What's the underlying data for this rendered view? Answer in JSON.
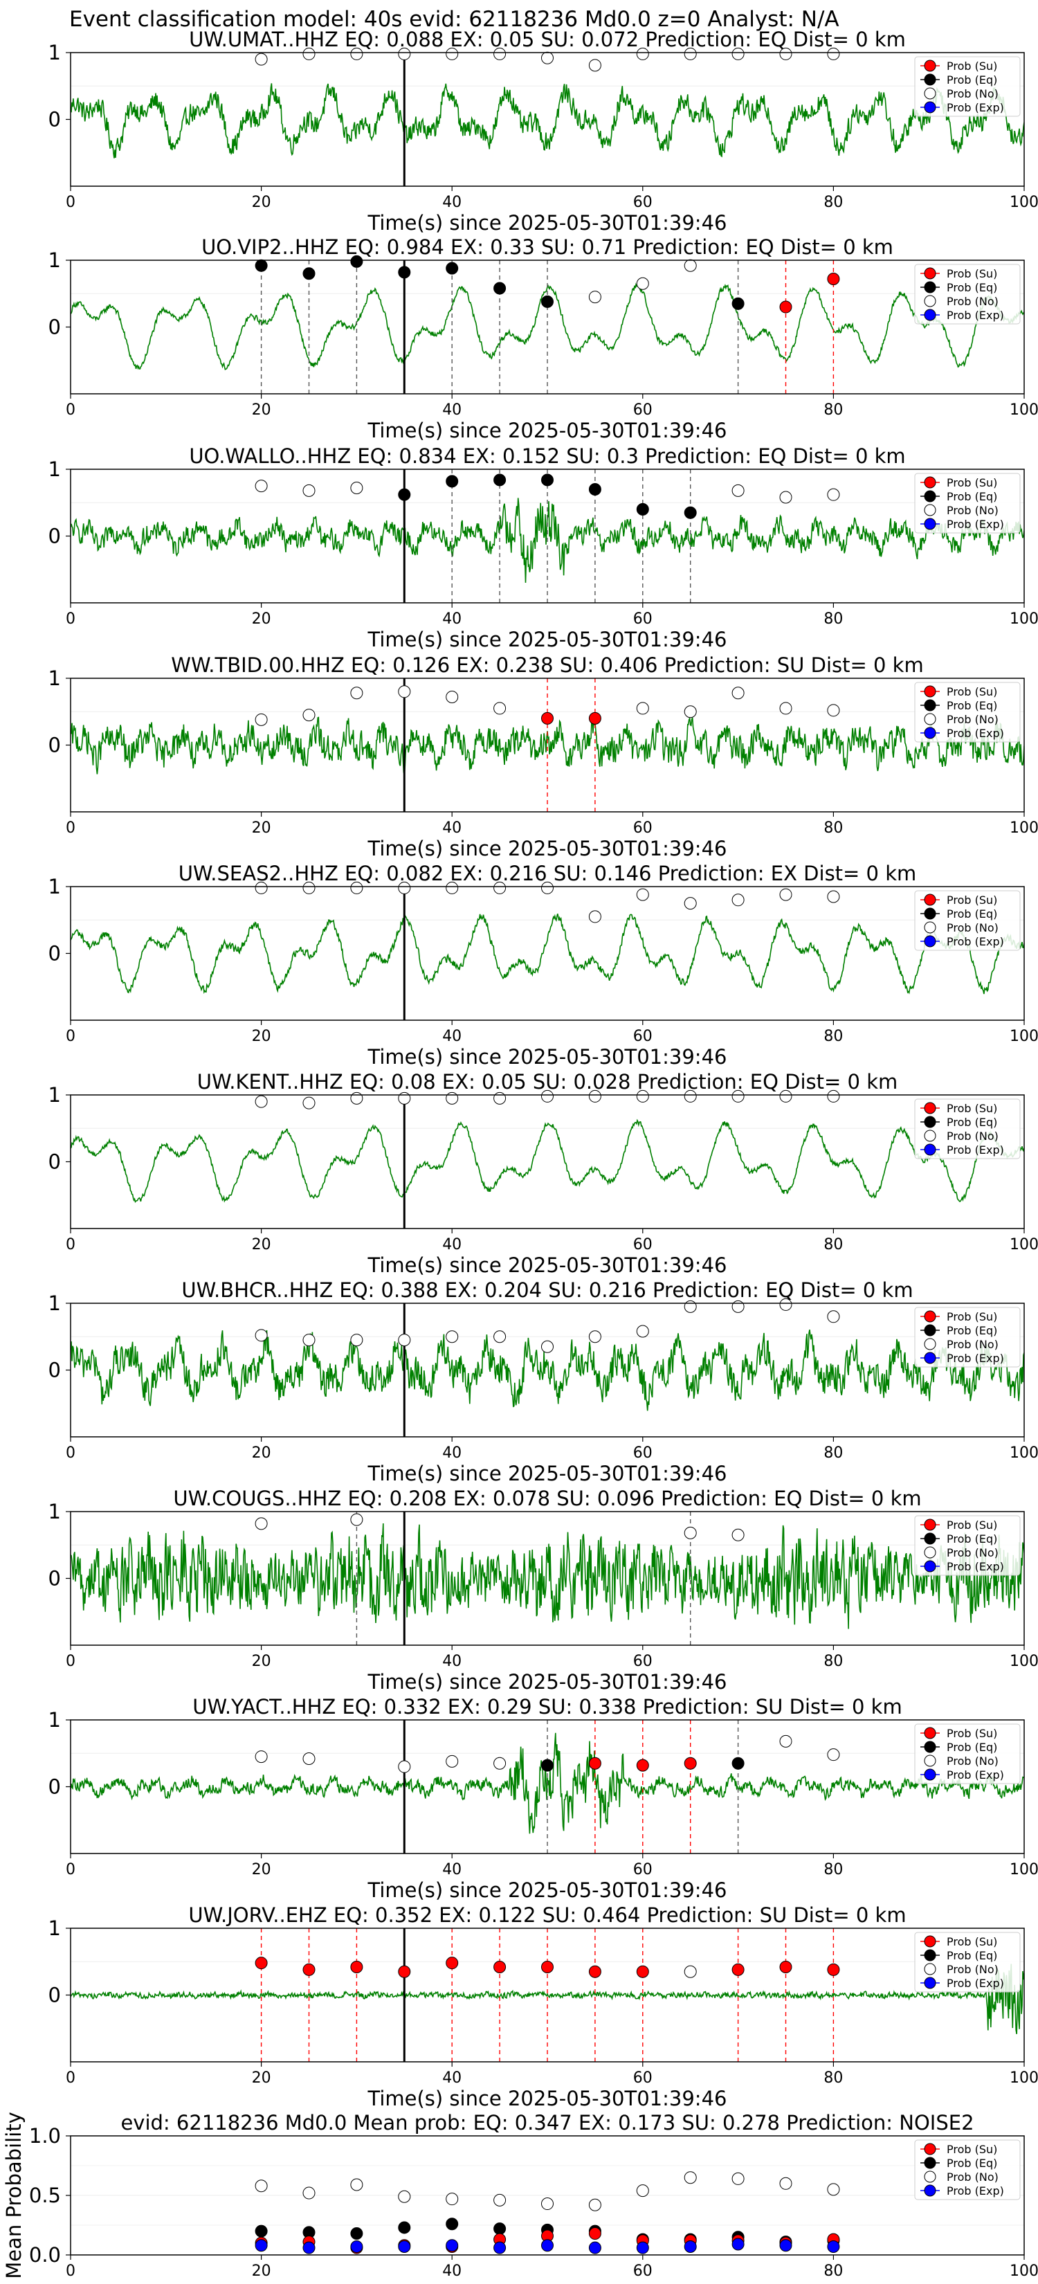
{
  "figure": {
    "suptitle": "Event classification model: 40s evid: 62118236 Md0.0 z=0 Analyst: N/A",
    "xlabel": "Time(s) since 2025-05-30T01:39:46"
  },
  "colors": {
    "waveform": "#008000",
    "su": "#ff0000",
    "eq": "#000000",
    "no": "#ffffff",
    "exp": "#0000ff",
    "axis": "#000000"
  },
  "legend": {
    "entries": [
      "Prob (Su)",
      "Prob (Eq)",
      "Prob (No)",
      "Prob (Exp)"
    ],
    "placement": "upper-right"
  },
  "chart_data": [
    {
      "type": "line",
      "panel": 1,
      "title": "UW.UMAT..HHZ   EQ: 0.088  EX: 0.05  SU: 0.072   Prediction: EQ    Dist= 0 km",
      "xlabel": "Time(s) since 2025-05-30T01:39:46",
      "xlim": [
        0,
        100
      ],
      "ylim": [
        -1,
        1
      ],
      "xticks": [
        0,
        20,
        40,
        60,
        80,
        100
      ],
      "yticks": [
        0,
        1
      ],
      "vline_x": 35,
      "red_lines": [],
      "gray_lines": [],
      "t": [
        20,
        25,
        30,
        35,
        40,
        45,
        50,
        55,
        60,
        65,
        70,
        75,
        80
      ],
      "prob_no": [
        0.9,
        0.98,
        0.98,
        0.98,
        0.98,
        0.98,
        0.92,
        0.81,
        0.98,
        0.98,
        0.98,
        0.98,
        0.98
      ],
      "prob_eq": [],
      "prob_su": [],
      "prob_exp": []
    },
    {
      "type": "line",
      "panel": 2,
      "title": "UO.VIP2..HHZ   EQ: 0.984  EX: 0.33  SU: 0.71   Prediction: EQ    Dist= 0 km",
      "xlabel": "Time(s) since 2025-05-30T01:39:46",
      "xlim": [
        0,
        100
      ],
      "ylim": [
        -1,
        1
      ],
      "xticks": [
        0,
        20,
        40,
        60,
        80,
        100
      ],
      "yticks": [
        0,
        1
      ],
      "vline_x": 35,
      "red_lines": [
        75,
        80
      ],
      "gray_lines": [
        20,
        25,
        30,
        40,
        45,
        50,
        70
      ],
      "t": [
        20,
        25,
        30,
        35,
        40,
        45,
        50,
        55,
        60,
        65,
        70,
        75,
        80
      ],
      "prob_no": [
        null,
        null,
        null,
        null,
        null,
        null,
        null,
        0.45,
        0.65,
        0.92,
        null,
        null,
        null
      ],
      "prob_eq": [
        0.92,
        0.8,
        0.98,
        0.82,
        0.88,
        0.58,
        0.38,
        null,
        null,
        null,
        0.35,
        null,
        null
      ],
      "prob_su": [
        null,
        null,
        null,
        null,
        null,
        null,
        null,
        null,
        null,
        null,
        null,
        0.3,
        0.72
      ],
      "prob_exp": []
    },
    {
      "type": "line",
      "panel": 3,
      "title": "UO.WALLO..HHZ   EQ: 0.834  EX: 0.152  SU: 0.3   Prediction: EQ    Dist= 0 km",
      "xlabel": "Time(s) since 2025-05-30T01:39:46",
      "xlim": [
        0,
        100
      ],
      "ylim": [
        -1,
        1
      ],
      "xticks": [
        0,
        20,
        40,
        60,
        80,
        100
      ],
      "yticks": [
        0,
        1
      ],
      "vline_x": 35,
      "red_lines": [],
      "gray_lines": [
        40,
        45,
        50,
        55,
        60,
        65
      ],
      "t": [
        20,
        25,
        30,
        35,
        40,
        45,
        50,
        55,
        60,
        65,
        70,
        75,
        80
      ],
      "prob_no": [
        0.75,
        0.68,
        0.72,
        null,
        null,
        null,
        null,
        null,
        null,
        null,
        0.68,
        0.58,
        0.62
      ],
      "prob_eq": [
        null,
        null,
        null,
        0.62,
        0.82,
        0.84,
        0.84,
        0.7,
        0.4,
        0.35,
        null,
        null,
        null
      ],
      "prob_su": [],
      "prob_exp": []
    },
    {
      "type": "line",
      "panel": 4,
      "title": "WW.TBID.00.HHZ   EQ: 0.126  EX: 0.238  SU: 0.406   Prediction: SU    Dist= 0 km",
      "xlabel": "Time(s) since 2025-05-30T01:39:46",
      "xlim": [
        0,
        100
      ],
      "ylim": [
        -1,
        1
      ],
      "xticks": [
        0,
        20,
        40,
        60,
        80,
        100
      ],
      "yticks": [
        0,
        1
      ],
      "vline_x": 35,
      "red_lines": [
        50,
        55
      ],
      "gray_lines": [],
      "t": [
        20,
        25,
        30,
        35,
        40,
        45,
        50,
        55,
        60,
        65,
        70,
        75,
        80
      ],
      "prob_no": [
        0.38,
        0.45,
        0.78,
        0.8,
        0.72,
        0.55,
        null,
        null,
        0.55,
        0.5,
        0.78,
        0.55,
        0.52
      ],
      "prob_eq": [],
      "prob_su": [
        null,
        null,
        null,
        null,
        null,
        null,
        0.4,
        0.4,
        null,
        null,
        null,
        null,
        null
      ],
      "prob_exp": []
    },
    {
      "type": "line",
      "panel": 5,
      "title": "UW.SEAS2..HHZ   EQ: 0.082  EX: 0.216  SU: 0.146   Prediction: EX    Dist= 0 km",
      "xlabel": "Time(s) since 2025-05-30T01:39:46",
      "xlim": [
        0,
        100
      ],
      "ylim": [
        -1,
        1
      ],
      "xticks": [
        0,
        20,
        40,
        60,
        80,
        100
      ],
      "yticks": [
        0,
        1
      ],
      "vline_x": 35,
      "red_lines": [],
      "gray_lines": [],
      "t": [
        20,
        25,
        30,
        35,
        40,
        45,
        50,
        55,
        60,
        65,
        70,
        75,
        80
      ],
      "prob_no": [
        0.98,
        0.98,
        0.98,
        0.98,
        0.98,
        0.98,
        0.98,
        0.55,
        0.88,
        0.75,
        0.8,
        0.88,
        0.85
      ],
      "prob_eq": [],
      "prob_su": [],
      "prob_exp": []
    },
    {
      "type": "line",
      "panel": 6,
      "title": "UW.KENT..HHZ   EQ: 0.08  EX: 0.05  SU: 0.028   Prediction: EQ    Dist= 0 km",
      "xlabel": "Time(s) since 2025-05-30T01:39:46",
      "xlim": [
        0,
        100
      ],
      "ylim": [
        -1,
        1
      ],
      "xticks": [
        0,
        20,
        40,
        60,
        80,
        100
      ],
      "yticks": [
        0,
        1
      ],
      "vline_x": 35,
      "red_lines": [],
      "gray_lines": [],
      "t": [
        20,
        25,
        30,
        35,
        40,
        45,
        50,
        55,
        60,
        65,
        70,
        75,
        80
      ],
      "prob_no": [
        0.9,
        0.88,
        0.95,
        0.95,
        0.95,
        0.95,
        0.98,
        0.98,
        0.98,
        0.98,
        0.98,
        0.98,
        0.98
      ],
      "prob_eq": [],
      "prob_su": [],
      "prob_exp": []
    },
    {
      "type": "line",
      "panel": 7,
      "title": "UW.BHCR..HHZ   EQ: 0.388  EX: 0.204  SU: 0.216   Prediction: EQ    Dist= 0 km",
      "xlabel": "Time(s) since 2025-05-30T01:39:46",
      "xlim": [
        0,
        100
      ],
      "ylim": [
        -1,
        1
      ],
      "xticks": [
        0,
        20,
        40,
        60,
        80,
        100
      ],
      "yticks": [
        0,
        1
      ],
      "vline_x": 35,
      "red_lines": [],
      "gray_lines": [],
      "t": [
        20,
        25,
        30,
        35,
        40,
        45,
        50,
        55,
        60,
        65,
        70,
        75,
        80
      ],
      "prob_no": [
        0.52,
        0.45,
        0.45,
        0.45,
        0.5,
        0.5,
        0.35,
        0.5,
        0.58,
        0.95,
        0.95,
        0.98,
        0.8
      ],
      "prob_eq": [],
      "prob_su": [],
      "prob_exp": []
    },
    {
      "type": "line",
      "panel": 8,
      "title": "UW.COUGS..HHZ   EQ: 0.208  EX: 0.078  SU: 0.096   Prediction: EQ    Dist= 0 km",
      "xlabel": "Time(s) since 2025-05-30T01:39:46",
      "xlim": [
        0,
        100
      ],
      "ylim": [
        -1,
        1
      ],
      "xticks": [
        0,
        20,
        40,
        60,
        80,
        100
      ],
      "yticks": [
        0,
        1
      ],
      "vline_x": 35,
      "red_lines": [],
      "gray_lines": [
        30,
        65
      ],
      "t": [
        20,
        25,
        30,
        35,
        40,
        45,
        50,
        55,
        60,
        65,
        70,
        75,
        80
      ],
      "prob_no": [
        0.82,
        null,
        0.88,
        null,
        null,
        null,
        null,
        null,
        null,
        0.68,
        0.65,
        null,
        null
      ],
      "prob_eq": [],
      "prob_su": [],
      "prob_exp": []
    },
    {
      "type": "line",
      "panel": 9,
      "title": "UW.YACT..HHZ   EQ: 0.332  EX: 0.29  SU: 0.338   Prediction: SU    Dist= 0 km",
      "xlabel": "Time(s) since 2025-05-30T01:39:46",
      "xlim": [
        0,
        100
      ],
      "ylim": [
        -1,
        1
      ],
      "xticks": [
        0,
        20,
        40,
        60,
        80,
        100
      ],
      "yticks": [
        0,
        1
      ],
      "vline_x": 35,
      "red_lines": [
        55,
        60,
        65
      ],
      "gray_lines": [
        50,
        70
      ],
      "t": [
        20,
        25,
        30,
        35,
        40,
        45,
        50,
        55,
        60,
        65,
        70,
        75,
        80
      ],
      "prob_no": [
        0.45,
        0.42,
        null,
        0.3,
        0.38,
        0.35,
        null,
        null,
        null,
        null,
        null,
        0.68,
        0.48
      ],
      "prob_eq": [
        null,
        null,
        null,
        null,
        null,
        null,
        0.32,
        null,
        null,
        null,
        0.35,
        null,
        null
      ],
      "prob_su": [
        null,
        null,
        null,
        null,
        null,
        null,
        null,
        0.35,
        0.32,
        0.35,
        null,
        null,
        null
      ],
      "prob_exp": []
    },
    {
      "type": "line",
      "panel": 10,
      "title": "UW.JORV..EHZ   EQ: 0.352  EX: 0.122  SU: 0.464   Prediction: SU    Dist= 0 km",
      "xlabel": "Time(s) since 2025-05-30T01:39:46",
      "xlim": [
        0,
        100
      ],
      "ylim": [
        -1,
        1
      ],
      "xticks": [
        0,
        20,
        40,
        60,
        80,
        100
      ],
      "yticks": [
        0,
        1
      ],
      "vline_x": 35,
      "red_lines": [
        20,
        25,
        30,
        40,
        45,
        50,
        55,
        60,
        70,
        75,
        80
      ],
      "gray_lines": [],
      "t": [
        20,
        25,
        30,
        35,
        40,
        45,
        50,
        55,
        60,
        65,
        70,
        75,
        80
      ],
      "prob_no": [
        null,
        null,
        null,
        null,
        null,
        null,
        null,
        null,
        null,
        0.35,
        null,
        null,
        null
      ],
      "prob_eq": [],
      "prob_su": [
        0.48,
        0.38,
        0.42,
        0.35,
        0.48,
        0.42,
        0.42,
        0.35,
        0.35,
        null,
        0.38,
        0.42,
        0.38
      ],
      "prob_exp": []
    },
    {
      "type": "scatter",
      "panel": 11,
      "title": "evid: 62118236  Md0.0   Mean prob:   EQ: 0.347  EX: 0.173  SU: 0.278   Prediction: NOISE2",
      "xlabel": "",
      "ylabel": "Mean Probability",
      "xlim": [
        0,
        100
      ],
      "ylim": [
        0,
        1
      ],
      "xticks": [
        0,
        20,
        40,
        60,
        80,
        100
      ],
      "yticks": [
        0.0,
        0.5,
        1.0
      ],
      "ytick_labels": [
        "0.0",
        "0.5",
        "1.0"
      ],
      "t": [
        20,
        25,
        30,
        35,
        40,
        45,
        50,
        55,
        60,
        65,
        70,
        75,
        80
      ],
      "prob_no": [
        0.58,
        0.52,
        0.59,
        0.49,
        0.47,
        0.46,
        0.43,
        0.42,
        0.54,
        0.65,
        0.64,
        0.6,
        0.55
      ],
      "prob_eq": [
        0.2,
        0.19,
        0.18,
        0.23,
        0.26,
        0.22,
        0.21,
        0.2,
        0.13,
        0.13,
        0.15,
        0.11,
        0.12
      ],
      "prob_su": [
        0.1,
        0.11,
        0.06,
        0.08,
        0.07,
        0.13,
        0.16,
        0.18,
        0.12,
        0.12,
        0.12,
        0.1,
        0.13
      ],
      "prob_exp": [
        0.08,
        0.06,
        0.07,
        0.07,
        0.08,
        0.06,
        0.08,
        0.06,
        0.06,
        0.07,
        0.09,
        0.08,
        0.07
      ]
    }
  ]
}
